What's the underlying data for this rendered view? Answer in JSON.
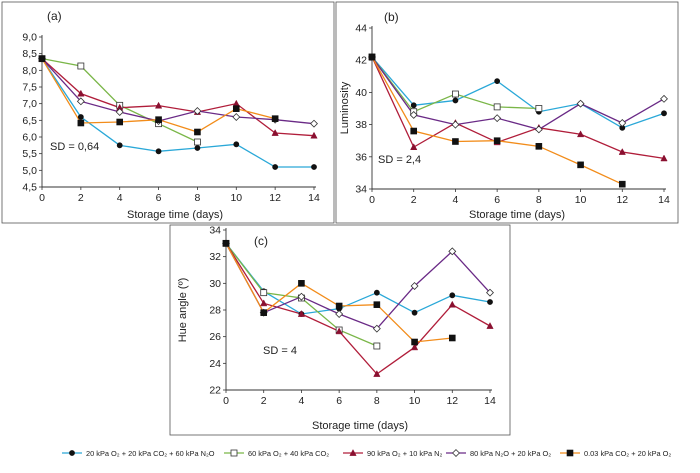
{
  "figure": {
    "legend": [
      {
        "series_index": 0
      },
      {
        "series_index": 1
      },
      {
        "series_index": 2
      },
      {
        "series_index": 3
      },
      {
        "series_index": 4
      }
    ]
  },
  "chart_data": [
    {
      "panel": "(a)",
      "type": "line",
      "xlabel": "Storage time (days)",
      "ylabel": "",
      "xlim": [
        0,
        14
      ],
      "ylim": [
        4.5,
        9.0
      ],
      "x_ticks": [
        "0",
        "2",
        "4",
        "6",
        "8",
        "10",
        "12",
        "14"
      ],
      "y_ticks": [
        "4,5",
        "5,0",
        "5,5",
        "6,0",
        "6,5",
        "7,0",
        "7,5",
        "8,0",
        "8,5",
        "9,0"
      ],
      "annotation": "SD = 0,64",
      "grid": false,
      "series": [
        {
          "name": "20 kPa O₂ + 20 kPa CO₂ + 60 kPa N₂O",
          "color": "#2aa8d8",
          "marker": "circle-filled",
          "x": [
            0,
            2,
            4,
            6,
            8,
            10,
            12,
            14
          ],
          "y": [
            8.35,
            6.6,
            5.75,
            5.57,
            5.67,
            5.78,
            5.1,
            5.1
          ]
        },
        {
          "name": "60 kPa O₂ + 40 kPa CO₂",
          "color": "#7ab648",
          "marker": "square-open",
          "x": [
            0,
            2,
            4,
            6,
            8
          ],
          "y": [
            8.35,
            8.13,
            6.95,
            6.4,
            5.85
          ]
        },
        {
          "name": "90 kPa O₂ + 10 kPa N₂",
          "color": "#b01d3a",
          "marker": "triangle-filled",
          "x": [
            0,
            2,
            4,
            6,
            8,
            10,
            12,
            14
          ],
          "y": [
            8.35,
            7.3,
            6.88,
            6.94,
            6.75,
            7.0,
            6.12,
            6.04
          ]
        },
        {
          "name": "80 kPa N₂O + 20 kPa O₂",
          "color": "#6a2a86",
          "marker": "diamond-open",
          "x": [
            0,
            2,
            4,
            6,
            8,
            10,
            12,
            14
          ],
          "y": [
            8.35,
            7.07,
            6.75,
            6.48,
            6.78,
            6.6,
            6.52,
            6.4
          ]
        },
        {
          "name": "0.03 kPa CO₂ + 20 kPa O₂",
          "color": "#f28c1a",
          "marker": "square-filled",
          "x": [
            0,
            2,
            4,
            6,
            8,
            10,
            12
          ],
          "y": [
            8.35,
            6.42,
            6.45,
            6.52,
            6.15,
            6.85,
            6.55
          ]
        }
      ]
    },
    {
      "panel": "(b)",
      "type": "line",
      "xlabel": "Storage time (days)",
      "ylabel": "Luminosity",
      "xlim": [
        0,
        14
      ],
      "ylim": [
        34,
        44
      ],
      "x_ticks": [
        "0",
        "2",
        "4",
        "6",
        "8",
        "10",
        "12",
        "14"
      ],
      "y_ticks": [
        "34",
        "36",
        "38",
        "40",
        "42",
        "44"
      ],
      "annotation": "SD = 2,4",
      "grid": false,
      "series": [
        {
          "name": "20 kPa O₂ + 20 kPa CO₂ + 60 kPa N₂O",
          "color": "#2aa8d8",
          "marker": "circle-filled",
          "x": [
            0,
            2,
            4,
            6,
            8,
            10,
            12,
            14
          ],
          "y": [
            42.2,
            39.2,
            39.5,
            40.7,
            38.8,
            39.3,
            37.8,
            38.7
          ]
        },
        {
          "name": "60 kPa O₂ + 40 kPa CO₂",
          "color": "#7ab648",
          "marker": "square-open",
          "x": [
            0,
            2,
            4,
            6,
            8
          ],
          "y": [
            42.2,
            38.8,
            39.9,
            39.1,
            39.0
          ]
        },
        {
          "name": "90 kPa O₂ + 10 kPa N₂",
          "color": "#b01d3a",
          "marker": "triangle-filled",
          "x": [
            0,
            2,
            4,
            6,
            8,
            10,
            12,
            14
          ],
          "y": [
            42.2,
            36.6,
            38.1,
            36.9,
            37.8,
            37.4,
            36.3,
            35.9
          ]
        },
        {
          "name": "80 kPa N₂O + 20 kPa O₂",
          "color": "#6a2a86",
          "marker": "diamond-open",
          "x": [
            0,
            2,
            4,
            6,
            8,
            10,
            12,
            14
          ],
          "y": [
            42.2,
            38.6,
            38.0,
            38.4,
            37.7,
            39.3,
            38.1,
            39.6
          ]
        },
        {
          "name": "0.03 kPa CO₂ + 20 kPa O₂",
          "color": "#f28c1a",
          "marker": "square-filled",
          "x": [
            0,
            2,
            4,
            6,
            8,
            10,
            12
          ],
          "y": [
            42.2,
            37.6,
            36.95,
            37.0,
            36.65,
            35.5,
            34.3
          ]
        }
      ]
    },
    {
      "panel": "(c)",
      "type": "line",
      "xlabel": "Storage time (days)",
      "ylabel": "Hue angle (º)",
      "xlim": [
        0,
        14
      ],
      "ylim": [
        22,
        34
      ],
      "x_ticks": [
        "0",
        "2",
        "4",
        "6",
        "8",
        "10",
        "12",
        "14"
      ],
      "y_ticks": [
        "22",
        "24",
        "26",
        "28",
        "30",
        "32",
        "34"
      ],
      "annotation": "SD = 4",
      "grid": false,
      "series": [
        {
          "name": "20 kPa O₂ + 20 kPa CO₂ + 60 kPa N₂O",
          "color": "#2aa8d8",
          "marker": "circle-filled",
          "x": [
            0,
            2,
            4,
            6,
            8,
            10,
            12,
            14
          ],
          "y": [
            33.0,
            29.4,
            27.7,
            28.1,
            29.3,
            27.8,
            29.1,
            28.6
          ]
        },
        {
          "name": "60 kPa O₂ + 40 kPa CO₂",
          "color": "#7ab648",
          "marker": "square-open",
          "x": [
            0,
            2,
            4,
            6,
            8
          ],
          "y": [
            33.0,
            29.3,
            28.9,
            26.5,
            25.3
          ]
        },
        {
          "name": "90 kPa O₂ + 10 kPa N₂",
          "color": "#b01d3a",
          "marker": "triangle-filled",
          "x": [
            0,
            2,
            4,
            6,
            8,
            10,
            12,
            14
          ],
          "y": [
            33.0,
            28.5,
            27.7,
            26.4,
            23.2,
            25.2,
            28.4,
            26.8
          ]
        },
        {
          "name": "80 kPa N₂O + 20 kPa O₂",
          "color": "#6a2a86",
          "marker": "diamond-open",
          "x": [
            0,
            2,
            4,
            6,
            8,
            10,
            12,
            14
          ],
          "y": [
            33.0,
            27.8,
            29.0,
            27.7,
            26.6,
            29.8,
            32.4,
            29.3
          ]
        },
        {
          "name": "0.03 kPa CO₂ + 20 kPa O₂",
          "color": "#f28c1a",
          "marker": "square-filled",
          "x": [
            0,
            2,
            4,
            6,
            8,
            10,
            12
          ],
          "y": [
            33.0,
            27.8,
            30.0,
            28.3,
            28.4,
            25.6,
            25.9
          ]
        }
      ]
    }
  ]
}
